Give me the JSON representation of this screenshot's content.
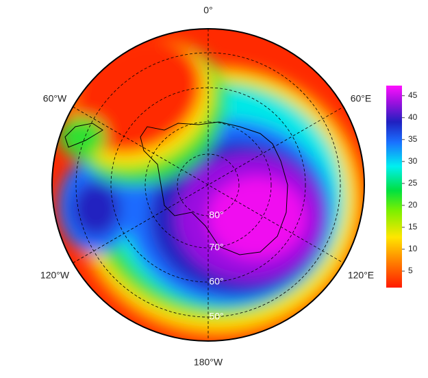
{
  "map": {
    "meridian_labels": [
      "0°",
      "60°E",
      "120°E",
      "180°W",
      "120°W",
      "60°W"
    ],
    "latitude_labels": [
      "80°",
      "70°",
      "60°",
      "50°"
    ]
  },
  "colorbar": {
    "lim": [
      1.25,
      47.3
    ],
    "ticks": [
      5,
      10,
      15,
      20,
      25,
      30,
      35,
      40,
      45
    ]
  }
}
